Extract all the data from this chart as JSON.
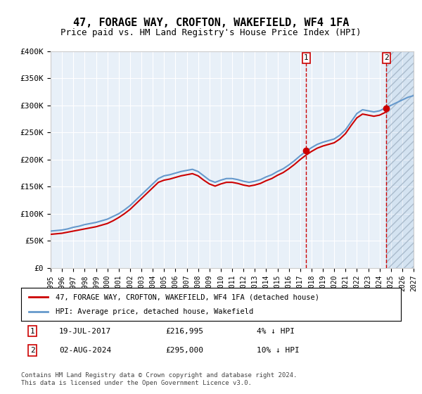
{
  "title": "47, FORAGE WAY, CROFTON, WAKEFIELD, WF4 1FA",
  "subtitle": "Price paid vs. HM Land Registry's House Price Index (HPI)",
  "ylabel": "",
  "ylim": [
    0,
    400000
  ],
  "yticks": [
    0,
    50000,
    100000,
    150000,
    200000,
    250000,
    300000,
    350000,
    400000
  ],
  "ytick_labels": [
    "£0",
    "£50K",
    "£100K",
    "£150K",
    "£200K",
    "£250K",
    "£300K",
    "£350K",
    "£400K"
  ],
  "background_color": "#ffffff",
  "plot_bg_color": "#e8f0f8",
  "grid_color": "#ffffff",
  "hpi_color": "#6699cc",
  "price_color": "#cc0000",
  "sale1_date": "19-JUL-2017",
  "sale1_price": 216995,
  "sale1_x": 2017.54,
  "sale2_date": "02-AUG-2024",
  "sale2_price": 295000,
  "sale2_x": 2024.59,
  "legend_label1": "47, FORAGE WAY, CROFTON, WAKEFIELD, WF4 1FA (detached house)",
  "legend_label2": "HPI: Average price, detached house, Wakefield",
  "annotation1": "1    19-JUL-2017       £216,995       4% ↓ HPI",
  "annotation2": "2    02-AUG-2024       £295,000       10% ↓ HPI",
  "footer": "Contains HM Land Registry data © Crown copyright and database right 2024.\nThis data is licensed under the Open Government Licence v3.0.",
  "hatch_start": 2024.59,
  "xmin": 1995,
  "xmax": 2027,
  "hpi_years": [
    1995,
    1995.5,
    1996,
    1996.5,
    1997,
    1997.5,
    1998,
    1998.5,
    1999,
    1999.5,
    2000,
    2000.5,
    2001,
    2001.5,
    2002,
    2002.5,
    2003,
    2003.5,
    2004,
    2004.5,
    2005,
    2005.5,
    2006,
    2006.5,
    2007,
    2007.5,
    2008,
    2008.5,
    2009,
    2009.5,
    2010,
    2010.5,
    2011,
    2011.5,
    2012,
    2012.5,
    2013,
    2013.5,
    2014,
    2014.5,
    2015,
    2015.5,
    2016,
    2016.5,
    2017,
    2017.5,
    2018,
    2018.5,
    2019,
    2019.5,
    2020,
    2020.5,
    2021,
    2021.5,
    2022,
    2022.5,
    2023,
    2023.5,
    2024,
    2024.5,
    2025,
    2025.5,
    2026,
    2026.5,
    2027
  ],
  "hpi_values": [
    68000,
    69000,
    70000,
    72000,
    75000,
    77000,
    80000,
    82000,
    84000,
    87000,
    90000,
    95000,
    100000,
    107000,
    115000,
    125000,
    135000,
    145000,
    155000,
    165000,
    170000,
    172000,
    175000,
    178000,
    180000,
    182000,
    178000,
    170000,
    162000,
    158000,
    162000,
    165000,
    165000,
    163000,
    160000,
    158000,
    160000,
    163000,
    168000,
    172000,
    178000,
    183000,
    190000,
    198000,
    207000,
    215000,
    222000,
    228000,
    232000,
    235000,
    238000,
    245000,
    255000,
    270000,
    285000,
    292000,
    290000,
    288000,
    290000,
    295000,
    300000,
    305000,
    310000,
    315000,
    318000
  ],
  "price_years": [
    1995,
    1995.5,
    1996,
    1996.5,
    1997,
    1997.5,
    1998,
    1998.5,
    1999,
    1999.5,
    2000,
    2000.5,
    2001,
    2001.5,
    2002,
    2002.5,
    2003,
    2003.5,
    2004,
    2004.5,
    2005,
    2005.5,
    2006,
    2006.5,
    2007,
    2007.5,
    2008,
    2008.5,
    2009,
    2009.5,
    2010,
    2010.5,
    2011,
    2011.5,
    2012,
    2012.5,
    2013,
    2013.5,
    2014,
    2014.5,
    2015,
    2015.5,
    2016,
    2016.5,
    2017,
    2017.5,
    2018,
    2018.5,
    2019,
    2019.5,
    2020,
    2020.5,
    2021,
    2021.5,
    2022,
    2022.5,
    2023,
    2023.5,
    2024,
    2024.5
  ],
  "price_values": [
    62000,
    63000,
    64000,
    66000,
    68000,
    70000,
    72000,
    74000,
    76000,
    79000,
    82000,
    87000,
    93000,
    100000,
    108000,
    118000,
    128000,
    138000,
    148000,
    158000,
    162000,
    164000,
    167000,
    170000,
    172000,
    174000,
    170000,
    162000,
    155000,
    151000,
    155000,
    158000,
    158000,
    156000,
    153000,
    151000,
    153000,
    156000,
    161000,
    165000,
    171000,
    176000,
    183000,
    191000,
    200000,
    208000,
    215000,
    221000,
    225000,
    228000,
    231000,
    238000,
    248000,
    263000,
    277000,
    284000,
    282000,
    280000,
    282000,
    287000
  ]
}
